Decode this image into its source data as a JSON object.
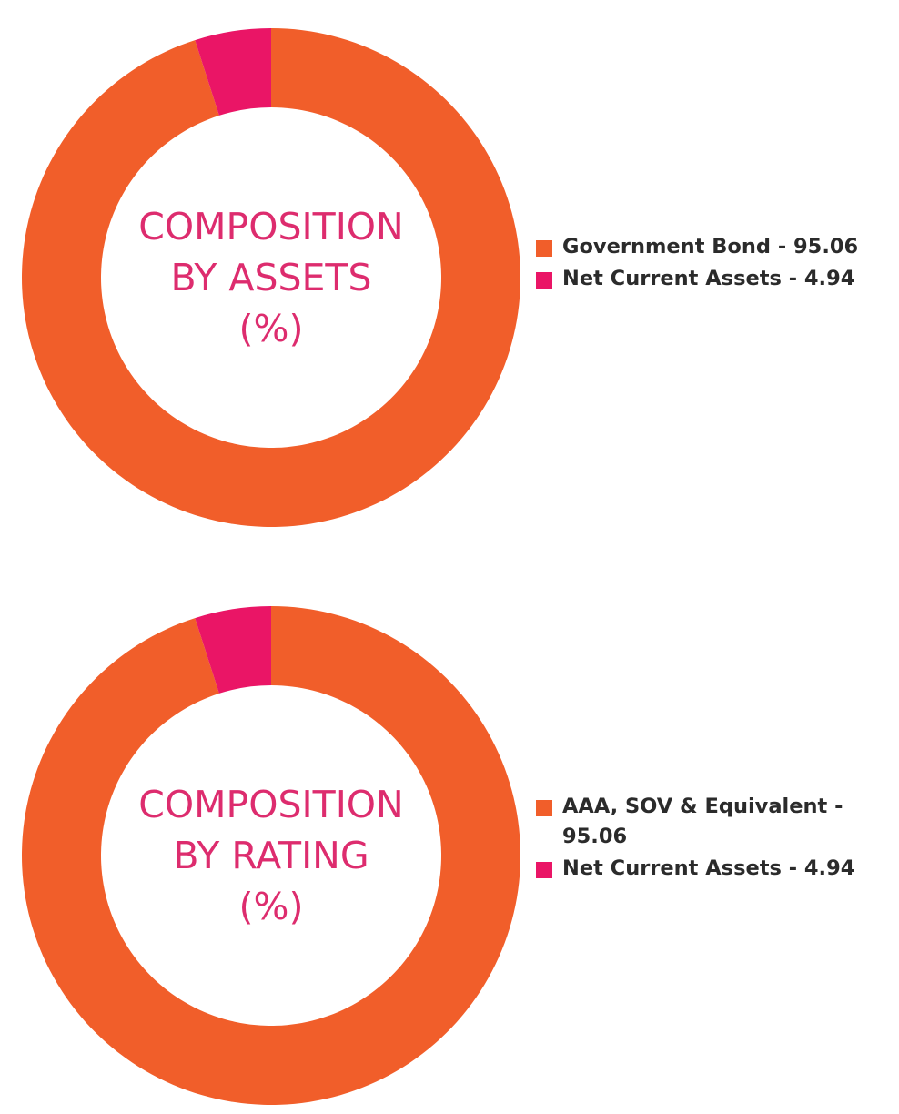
{
  "colors": {
    "orange": "#F15E2A",
    "pink": "#EA1566",
    "title_pink": "#DD2C6E",
    "legend_text": "#2B2B2B"
  },
  "chart_data": [
    {
      "type": "pie",
      "variant": "donut",
      "title_lines": [
        "COMPOSITION",
        "BY ASSETS",
        "(%)"
      ],
      "start_angle": "12 o'clock",
      "direction": "clockwise",
      "legend_position": "right",
      "slices": [
        {
          "label": "Government Bond - 95.06",
          "value": 95.06,
          "color": "#F15E2A"
        },
        {
          "label": "Net Current Assets - 4.94",
          "value": 4.94,
          "color": "#EA1566"
        }
      ]
    },
    {
      "type": "pie",
      "variant": "donut",
      "title_lines": [
        "COMPOSITION",
        "BY RATING",
        "(%)"
      ],
      "start_angle": "12 o'clock",
      "direction": "clockwise",
      "legend_position": "right",
      "slices": [
        {
          "label": "AAA, SOV & Equivalent - 95.06",
          "value": 95.06,
          "color": "#F15E2A"
        },
        {
          "label": "Net Current Assets - 4.94",
          "value": 4.94,
          "color": "#EA1566"
        }
      ]
    }
  ]
}
